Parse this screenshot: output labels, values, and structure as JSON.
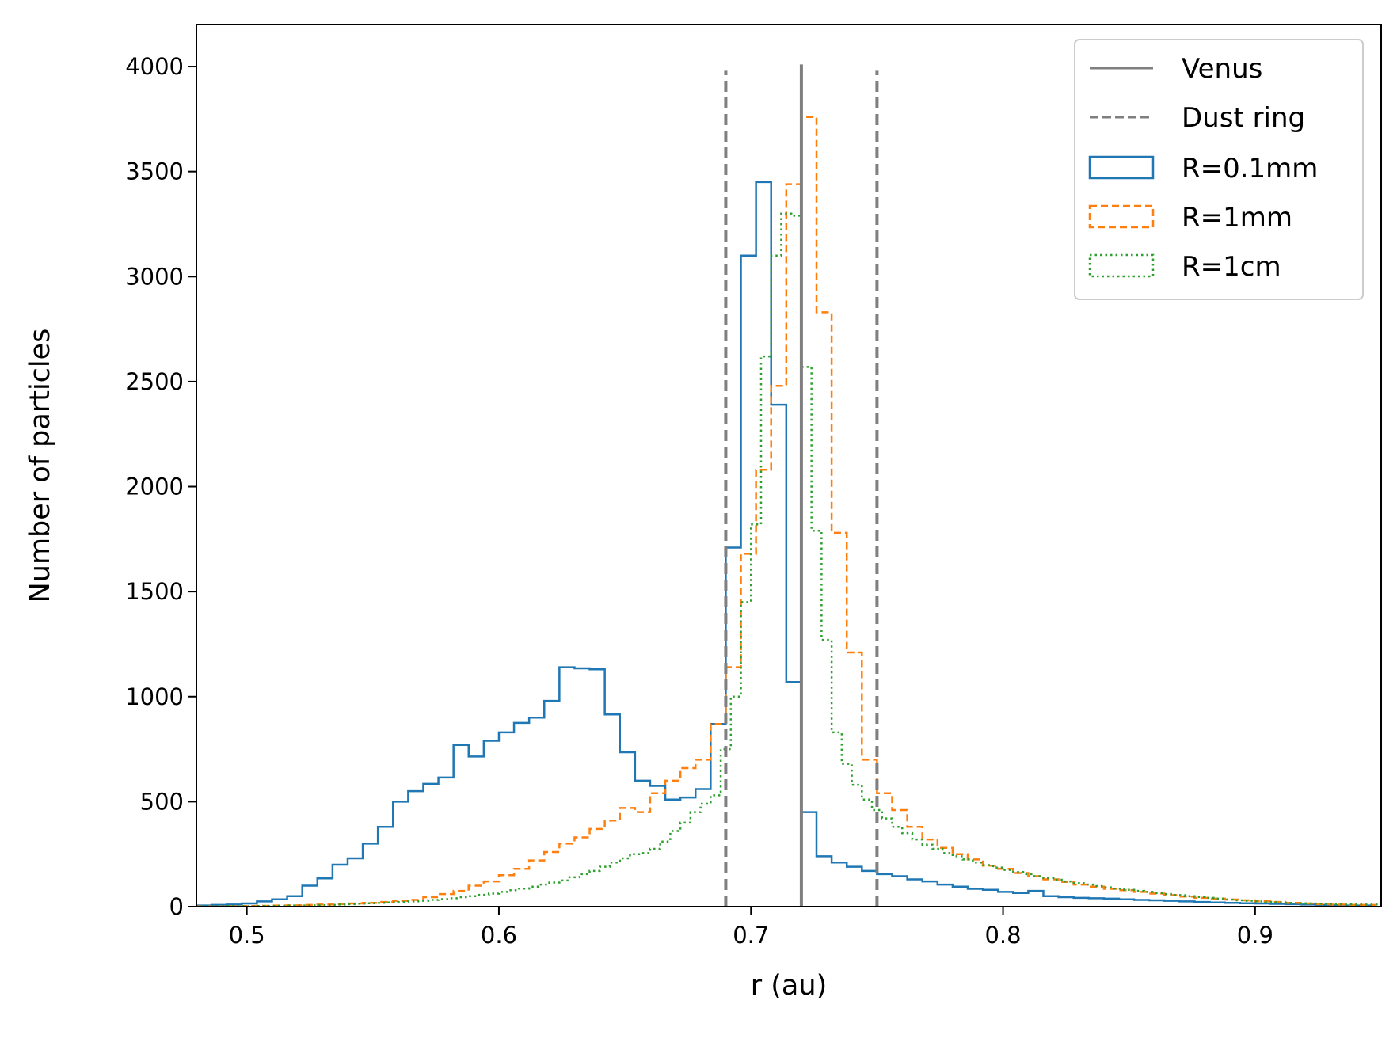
{
  "chart_data": {
    "type": "histogram",
    "xlabel": "r (au)",
    "ylabel": "Number of particles",
    "xlim": [
      0.48,
      0.95
    ],
    "ylim": [
      0,
      4200
    ],
    "xticks": [
      0.5,
      0.6,
      0.7,
      0.8,
      0.9
    ],
    "xtick_labels": [
      "0.5",
      "0.6",
      "0.7",
      "0.8",
      "0.9"
    ],
    "yticks": [
      0,
      500,
      1000,
      1500,
      2000,
      2500,
      3000,
      3500,
      4000
    ],
    "ytick_labels": [
      "0",
      "500",
      "1000",
      "1500",
      "2000",
      "2500",
      "3000",
      "3500",
      "4000"
    ],
    "grid": false,
    "legend_position": "top-right",
    "colors": {
      "venus": "#7f7f7f",
      "dust": "#7f7f7f",
      "r01": "#1f77b4",
      "r1mm": "#ff7f0e",
      "r1cm": "#2ca02c"
    },
    "vlines": [
      {
        "name": "Venus",
        "x": 0.72,
        "ymax": 4010,
        "style": "solid"
      },
      {
        "name": "Dust ring",
        "x": 0.69,
        "ymax": 3980,
        "style": "dashed"
      },
      {
        "name": "Dust ring",
        "x": 0.75,
        "ymax": 3980,
        "style": "dashed"
      }
    ],
    "legend": [
      "Venus",
      "Dust ring",
      "R=0.1mm",
      "R=1mm",
      "R=1cm"
    ],
    "series": [
      {
        "name": "R=0.1mm",
        "style": "solid",
        "color_key": "r01",
        "bin_width": 0.006,
        "start": 0.48,
        "values": [
          5,
          8,
          10,
          15,
          25,
          35,
          50,
          100,
          135,
          200,
          230,
          300,
          380,
          500,
          550,
          585,
          615,
          770,
          715,
          790,
          830,
          875,
          900,
          980,
          1140,
          1135,
          1130,
          915,
          735,
          600,
          575,
          510,
          520,
          560,
          870,
          1710,
          3100,
          3450,
          2390,
          1070,
          450,
          240,
          210,
          190,
          170,
          155,
          145,
          130,
          120,
          105,
          95,
          85,
          80,
          70,
          65,
          75,
          50,
          45,
          42,
          40,
          38,
          35,
          32,
          30,
          28,
          25,
          22,
          20,
          18,
          16,
          15,
          13,
          12,
          10,
          8,
          6,
          5,
          5
        ]
      },
      {
        "name": "R=1mm",
        "style": "dashed",
        "color_key": "r1mm",
        "bin_width": 0.006,
        "start": 0.48,
        "values": [
          1,
          1,
          2,
          3,
          4,
          5,
          6,
          8,
          10,
          12,
          15,
          18,
          22,
          28,
          32,
          45,
          60,
          75,
          100,
          120,
          150,
          180,
          220,
          260,
          300,
          330,
          370,
          410,
          470,
          450,
          540,
          600,
          660,
          700,
          870,
          1140,
          1680,
          2080,
          2480,
          3440,
          3760,
          2830,
          1780,
          1210,
          700,
          540,
          460,
          380,
          320,
          280,
          250,
          225,
          195,
          180,
          160,
          145,
          130,
          118,
          105,
          95,
          85,
          78,
          70,
          62,
          55,
          48,
          42,
          38,
          34,
          30,
          26,
          22,
          18,
          15,
          12,
          10,
          8,
          8
        ]
      },
      {
        "name": "R=1cm",
        "style": "dotted",
        "color_key": "r1cm",
        "bin_width": 0.004,
        "start": 0.48,
        "values": [
          1,
          1,
          1,
          2,
          2,
          2,
          3,
          3,
          4,
          5,
          5,
          6,
          7,
          8,
          10,
          12,
          14,
          16,
          18,
          20,
          22,
          25,
          28,
          32,
          36,
          40,
          45,
          50,
          56,
          62,
          70,
          78,
          86,
          95,
          105,
          115,
          125,
          140,
          155,
          170,
          190,
          210,
          230,
          250,
          255,
          275,
          310,
          360,
          400,
          450,
          490,
          530,
          750,
          1000,
          1450,
          1820,
          2620,
          3100,
          3300,
          3290,
          2570,
          1790,
          1270,
          830,
          680,
          580,
          510,
          460,
          420,
          380,
          350,
          320,
          295,
          275,
          255,
          240,
          225,
          210,
          198,
          186,
          175,
          165,
          155,
          145,
          136,
          128,
          120,
          112,
          105,
          98,
          92,
          86,
          80,
          75,
          70,
          65,
          60,
          55,
          50,
          46,
          42,
          38,
          34,
          30,
          28,
          25,
          22,
          20,
          18,
          16,
          15,
          14,
          13,
          12,
          11,
          10,
          10,
          10
        ]
      }
    ]
  }
}
